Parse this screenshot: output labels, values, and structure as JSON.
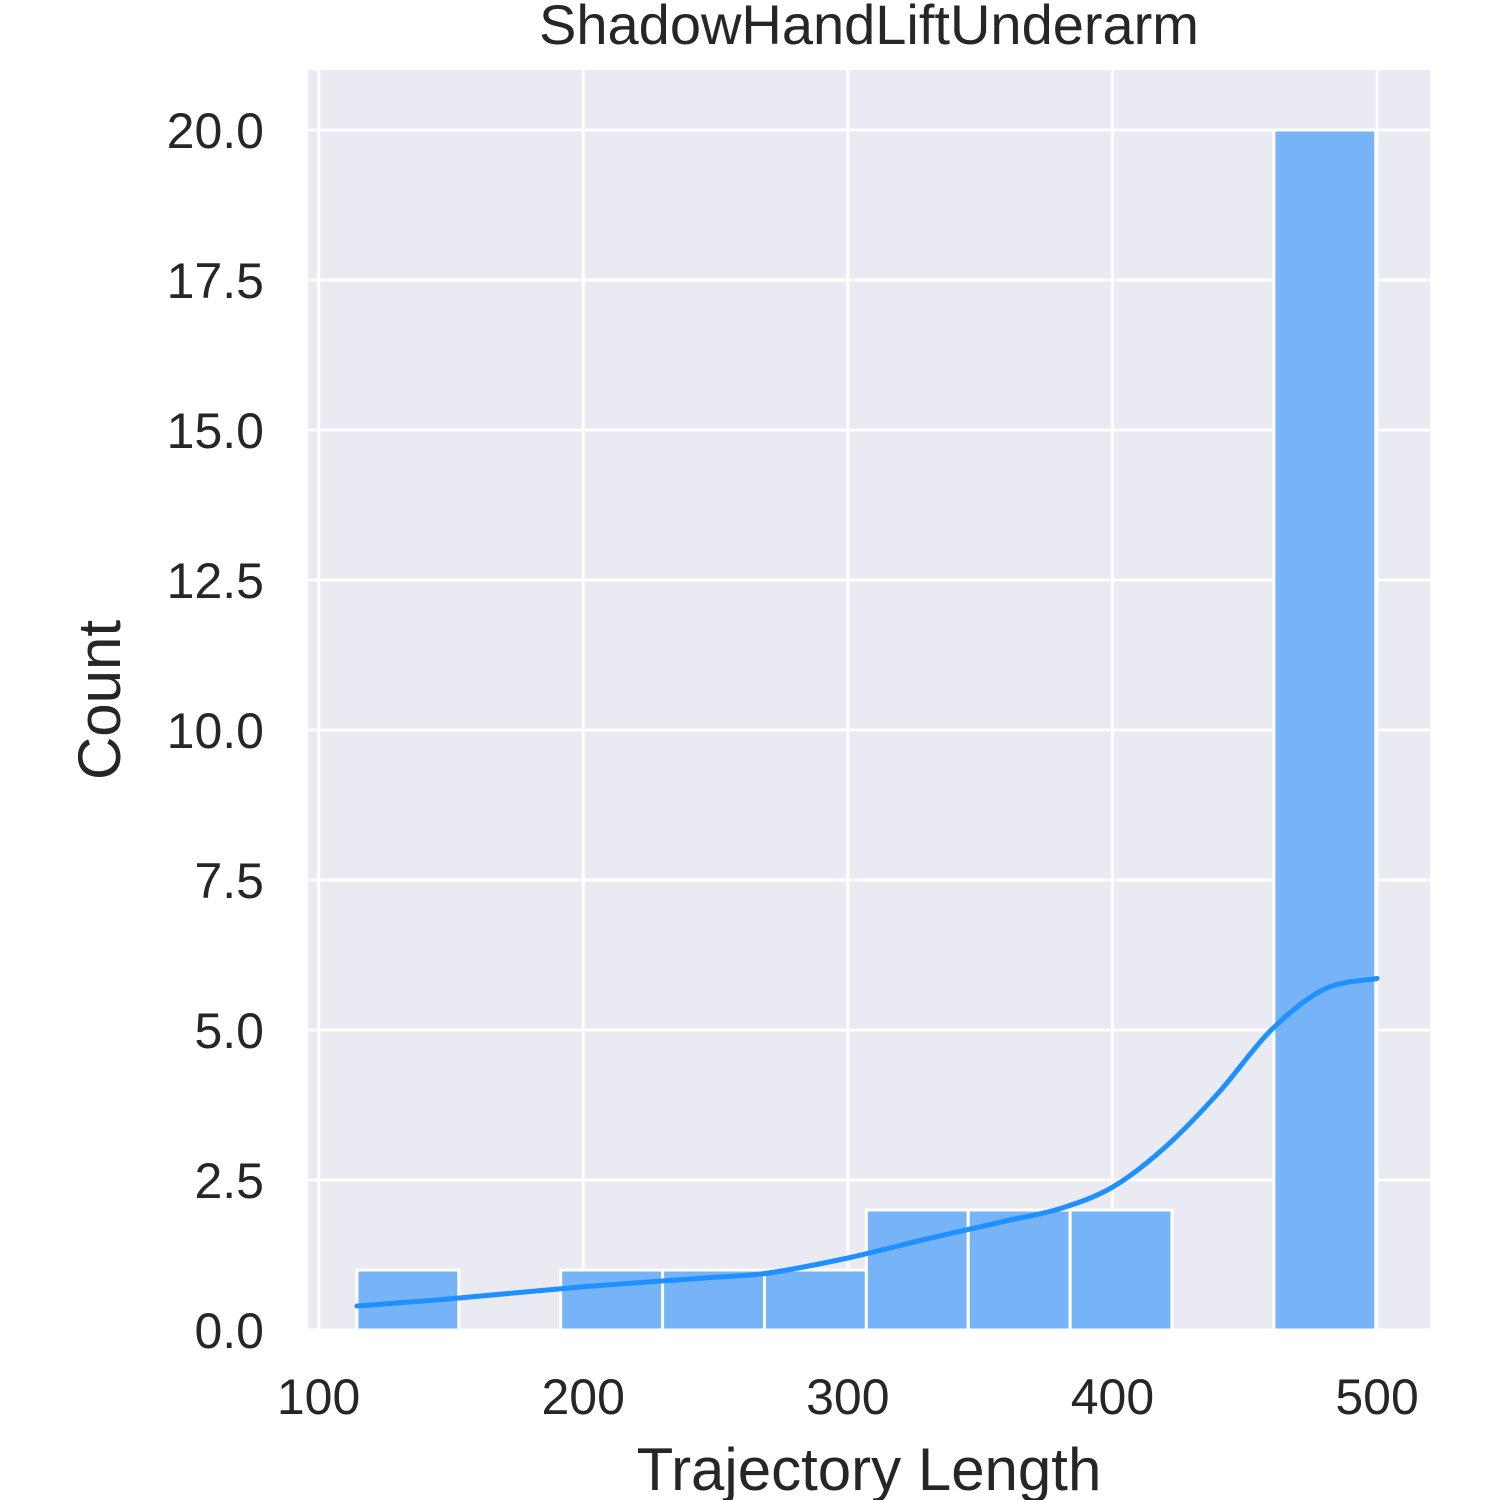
{
  "chart_data": {
    "type": "bar",
    "title": "ShadowHandLiftUnderarm",
    "xlabel": "Trajectory Length",
    "ylabel": "Count",
    "xlim": [
      96,
      520
    ],
    "ylim": [
      0,
      21
    ],
    "x_ticks": [
      100,
      200,
      300,
      400,
      500
    ],
    "x_tick_labels": [
      "100",
      "200",
      "300",
      "400",
      "500"
    ],
    "y_ticks": [
      0,
      2.5,
      5,
      7.5,
      10,
      12.5,
      15,
      17.5,
      20
    ],
    "y_tick_labels": [
      "0.0",
      "2.5",
      "5.0",
      "7.5",
      "10.0",
      "12.5",
      "15.0",
      "17.5",
      "20.0"
    ],
    "grid": true,
    "bar_color": "#77b4f7",
    "kde_color": "#1e90ff",
    "background_color": "#eaeaf2",
    "bins": [
      {
        "x0": 114.5,
        "x1": 153.0,
        "count": 1
      },
      {
        "x0": 153.0,
        "x1": 191.5,
        "count": 0
      },
      {
        "x0": 191.5,
        "x1": 230.0,
        "count": 1
      },
      {
        "x0": 230.0,
        "x1": 268.5,
        "count": 1
      },
      {
        "x0": 268.5,
        "x1": 307.0,
        "count": 1
      },
      {
        "x0": 307.0,
        "x1": 345.5,
        "count": 2
      },
      {
        "x0": 345.5,
        "x1": 384.0,
        "count": 2
      },
      {
        "x0": 384.0,
        "x1": 422.5,
        "count": 2
      },
      {
        "x0": 422.5,
        "x1": 461.0,
        "count": 0
      },
      {
        "x0": 461.0,
        "x1": 499.5,
        "count": 20
      }
    ],
    "kde": {
      "x": [
        114.5,
        150,
        200,
        250,
        270,
        300,
        330,
        360,
        380,
        400,
        420,
        440,
        460,
        480,
        500
      ],
      "y": [
        0.4,
        0.52,
        0.72,
        0.88,
        0.95,
        1.2,
        1.52,
        1.82,
        2.02,
        2.38,
        3.05,
        3.95,
        5.0,
        5.68,
        5.86
      ]
    }
  }
}
